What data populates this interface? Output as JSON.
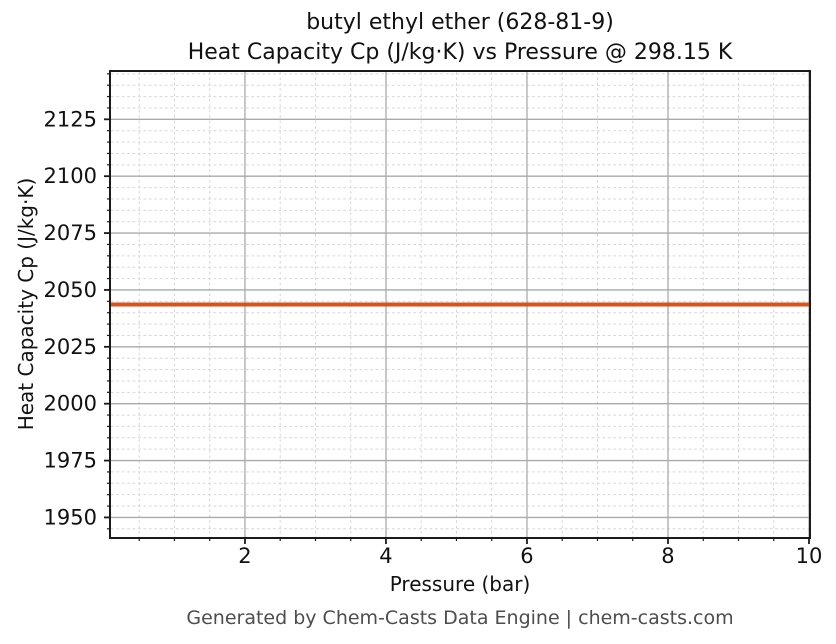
{
  "footer": {
    "text": "Generated by Chem-Casts Data Engine | chem-casts.com"
  },
  "colors": {
    "line": "#d2541e",
    "spine": "#1a1a1a",
    "grid_major": "#aaaaaa",
    "grid_minor": "#d6d6d6",
    "footer_text": "#4d4d4d",
    "background": "#ffffff"
  },
  "chart_data": {
    "type": "line",
    "title": "butyl ethyl ether (628-81-9)",
    "subtitle": "Heat Capacity Cp (J/kg·K) vs Pressure @ 298.15 K",
    "xlabel": "Pressure (bar)",
    "ylabel": "Heat Capacity Cp (J/kg·K)",
    "xlim": [
      0.1,
      10
    ],
    "ylim": [
      1941.4,
      2145.8
    ],
    "xticks": [
      2,
      4,
      6,
      8,
      10
    ],
    "yticks": [
      1950,
      1975,
      2000,
      2025,
      2050,
      2075,
      2100,
      2125
    ],
    "x_minor_step": 0.5,
    "y_minor_step": 5,
    "grid": true,
    "legend": false,
    "series": [
      {
        "name": "Heat Capacity Cp",
        "color": "#d2541e",
        "linewidth": 4,
        "x": [
          0.1,
          10
        ],
        "y": [
          2043.6,
          2043.6
        ]
      }
    ]
  }
}
